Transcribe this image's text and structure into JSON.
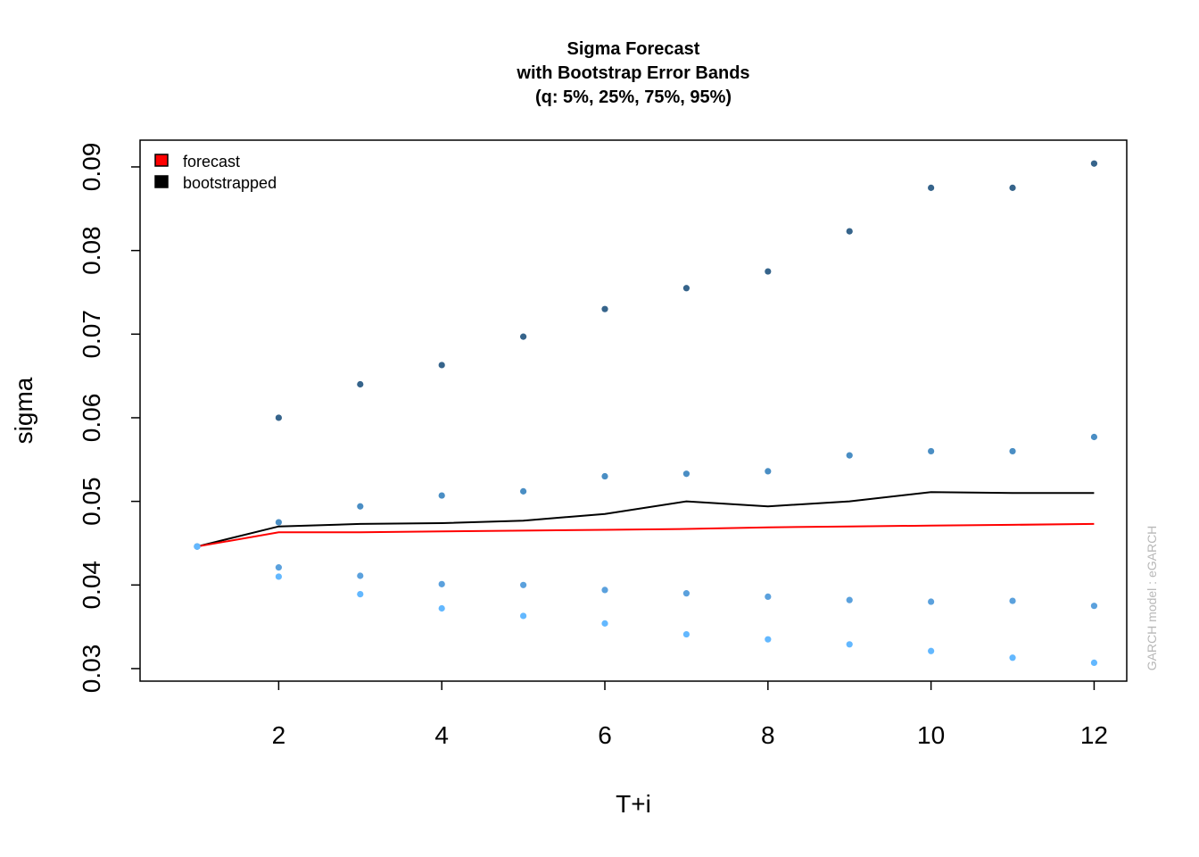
{
  "chart_data": {
    "type": "line",
    "title": [
      "Sigma Forecast",
      "with Bootstrap Error Bands",
      "(q: 5%, 25%, 75%, 95%)"
    ],
    "xlabel": "T+i",
    "ylabel": "sigma",
    "xlim": [
      0.3,
      12.4
    ],
    "ylim": [
      0.0285,
      0.0932
    ],
    "x_ticks": [
      2,
      4,
      6,
      8,
      10,
      12
    ],
    "x_tick_labels": [
      "2",
      "4",
      "6",
      "8",
      "10",
      "12"
    ],
    "y_ticks": [
      0.03,
      0.04,
      0.05,
      0.06,
      0.07,
      0.08,
      0.09
    ],
    "y_tick_labels": [
      "0.03",
      "0.04",
      "0.05",
      "0.06",
      "0.07",
      "0.08",
      "0.09"
    ],
    "x": [
      1,
      2,
      3,
      4,
      5,
      6,
      7,
      8,
      9,
      10,
      11,
      12
    ],
    "series": [
      {
        "name": "forecast",
        "kind": "line",
        "color": "#ff0000",
        "values": [
          0.0446,
          0.0463,
          0.0463,
          0.0464,
          0.0465,
          0.0466,
          0.0467,
          0.0469,
          0.047,
          0.0471,
          0.0472,
          0.0473
        ]
      },
      {
        "name": "bootstrapped",
        "kind": "line",
        "color": "#000000",
        "values": [
          0.0446,
          0.047,
          0.0473,
          0.0474,
          0.0477,
          0.0485,
          0.05,
          0.0494,
          0.05,
          0.0511,
          0.051,
          0.051
        ]
      },
      {
        "name": "q95",
        "kind": "points",
        "color": "#36648b",
        "values": [
          0.0446,
          0.06,
          0.064,
          0.0663,
          0.0697,
          0.073,
          0.0755,
          0.0775,
          0.0823,
          0.0875,
          0.0875,
          0.0904
        ]
      },
      {
        "name": "q75",
        "kind": "points",
        "color": "#4a8ec4",
        "values": [
          0.0446,
          0.0475,
          0.0494,
          0.0507,
          0.0512,
          0.053,
          0.0533,
          0.0536,
          0.0555,
          0.056,
          0.056,
          0.0577
        ]
      },
      {
        "name": "q25",
        "kind": "points",
        "color": "#5ba1dd",
        "values": [
          0.0446,
          0.0421,
          0.0411,
          0.0401,
          0.04,
          0.0394,
          0.039,
          0.0386,
          0.0382,
          0.038,
          0.0381,
          0.0375
        ]
      },
      {
        "name": "q5",
        "kind": "points",
        "color": "#63b8ff",
        "values": [
          0.0446,
          0.041,
          0.0389,
          0.0372,
          0.0363,
          0.0354,
          0.0341,
          0.0335,
          0.0329,
          0.0321,
          0.0313,
          0.0307
        ]
      }
    ],
    "legend": {
      "position": "top-left",
      "entries": [
        {
          "label": "forecast",
          "color": "#ff0000"
        },
        {
          "label": "bootstrapped",
          "color": "#000000"
        }
      ]
    },
    "watermark": "GARCH model : eGARCH",
    "grid": false
  }
}
